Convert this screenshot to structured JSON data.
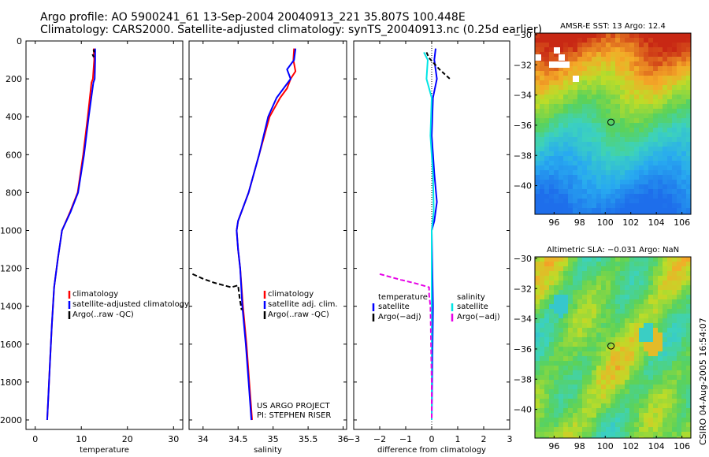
{
  "header": {
    "title_line1": "Argo profile: AO 5900241_61 13-Sep-2004 20040913_221 35.807S 100.448E",
    "title_line2": "Climatology: CARS2000. Satellite-adjusted climatology: synTS_20040913.nc (0.25d earlier)"
  },
  "side_stamp": "CSIRO 04-Aug-2005 16:54:07",
  "colors": {
    "climatology": "#ff0000",
    "satellite": "#0000ff",
    "argo": "#000000",
    "salinity_satellite": "#00e5e5",
    "salinity_argo": "#e600e6"
  },
  "chart_data": [
    {
      "type": "line",
      "xlabel": "temperature",
      "ylabel": "",
      "xlim": [
        -2,
        32
      ],
      "ylim": [
        2050,
        0
      ],
      "x_ticks": [
        0,
        10,
        20,
        30
      ],
      "y_ticks": [
        0,
        200,
        400,
        600,
        800,
        1000,
        1200,
        1400,
        1600,
        1800,
        2000
      ],
      "legend": {
        "position": "lower-right",
        "entries": [
          "climatology",
          "satellite-adjusted climatology",
          "Argo(..raw -QC)"
        ]
      },
      "annotations": [],
      "series": [
        {
          "name": "climatology",
          "color": "#ff0000",
          "points": [
            [
              12.7,
              40
            ],
            [
              12.8,
              100
            ],
            [
              12.5,
              200
            ],
            [
              12.2,
              220
            ],
            [
              11.4,
              400
            ],
            [
              10.4,
              600
            ],
            [
              9.2,
              800
            ],
            [
              7.6,
              900
            ],
            [
              5.8,
              1000
            ],
            [
              4.9,
              1150
            ],
            [
              4.1,
              1300
            ],
            [
              3.6,
              1500
            ],
            [
              3.2,
              1700
            ],
            [
              2.8,
              1900
            ],
            [
              2.6,
              2000
            ]
          ]
        },
        {
          "name": "satellite-adjusted climatology",
          "color": "#0000ff",
          "points": [
            [
              13.0,
              40
            ],
            [
              13.0,
              100
            ],
            [
              12.9,
              200
            ],
            [
              12.6,
              220
            ],
            [
              11.6,
              400
            ],
            [
              10.6,
              600
            ],
            [
              9.3,
              800
            ],
            [
              7.7,
              900
            ],
            [
              5.8,
              1000
            ],
            [
              4.9,
              1150
            ],
            [
              4.1,
              1300
            ],
            [
              3.6,
              1500
            ],
            [
              3.2,
              1700
            ],
            [
              2.8,
              1900
            ],
            [
              2.6,
              2000
            ]
          ]
        },
        {
          "name": "Argo(..raw -QC)",
          "color": "#000000",
          "dash": "4,3",
          "points": [
            [
              12.6,
              45
            ],
            [
              12.8,
              55
            ],
            [
              12.4,
              70
            ],
            [
              12.7,
              85
            ]
          ]
        }
      ]
    },
    {
      "type": "line",
      "xlabel": "salinity",
      "ylabel": "",
      "xlim": [
        33.8,
        36.05
      ],
      "ylim": [
        2050,
        0
      ],
      "x_ticks": [
        34,
        34.5,
        35,
        35.5,
        36
      ],
      "y_ticks": [
        0,
        200,
        400,
        600,
        800,
        1000,
        1200,
        1400,
        1600,
        1800,
        2000
      ],
      "legend": {
        "position": "lower-right",
        "entries": [
          "climatology",
          "satellite adj. clim.",
          "Argo(..raw -QC)"
        ]
      },
      "annotations": [
        "US ARGO PROJECT",
        "PI: STEPHEN RISER"
      ],
      "series": [
        {
          "name": "climatology",
          "color": "#ff0000",
          "points": [
            [
              35.3,
              40
            ],
            [
              35.29,
              100
            ],
            [
              35.32,
              160
            ],
            [
              35.25,
              200
            ],
            [
              35.2,
              250
            ],
            [
              35.1,
              300
            ],
            [
              34.95,
              400
            ],
            [
              34.8,
              600
            ],
            [
              34.65,
              800
            ],
            [
              34.5,
              950
            ],
            [
              34.48,
              1000
            ],
            [
              34.5,
              1100
            ],
            [
              34.53,
              1200
            ],
            [
              34.57,
              1400
            ],
            [
              34.62,
              1600
            ],
            [
              34.66,
              1800
            ],
            [
              34.7,
              2000
            ]
          ]
        },
        {
          "name": "satellite adj. clim.",
          "color": "#0000ff",
          "points": [
            [
              35.32,
              40
            ],
            [
              35.3,
              100
            ],
            [
              35.2,
              150
            ],
            [
              35.25,
              200
            ],
            [
              35.15,
              250
            ],
            [
              35.05,
              300
            ],
            [
              34.93,
              400
            ],
            [
              34.8,
              600
            ],
            [
              34.65,
              800
            ],
            [
              34.5,
              950
            ],
            [
              34.48,
              1000
            ],
            [
              34.5,
              1100
            ],
            [
              34.53,
              1200
            ],
            [
              34.56,
              1400
            ],
            [
              34.61,
              1600
            ],
            [
              34.65,
              1800
            ],
            [
              34.69,
              2000
            ]
          ]
        },
        {
          "name": "Argo(..raw -QC)",
          "color": "#000000",
          "dash": "6,3",
          "points": [
            [
              33.85,
              1230
            ],
            [
              34.0,
              1255
            ],
            [
              34.15,
              1275
            ],
            [
              34.3,
              1290
            ],
            [
              34.4,
              1300
            ],
            [
              34.5,
              1290
            ],
            [
              34.52,
              1350
            ],
            [
              34.55,
              1420
            ]
          ]
        }
      ]
    },
    {
      "type": "line",
      "xlabel": "difference from climatology",
      "ylabel": "",
      "xlim": [
        -3,
        3
      ],
      "ylim": [
        2050,
        0
      ],
      "x_ticks": [
        -3,
        -2,
        -1,
        0,
        1,
        2,
        3
      ],
      "y_ticks": [
        0,
        200,
        400,
        600,
        800,
        1000,
        1200,
        1400,
        1600,
        1800,
        2000
      ],
      "legend": {
        "position": "lower-middle",
        "entries_temperature_header": "temperature",
        "entries_salinity_header": "salinity",
        "entries": [
          "satellite",
          "Argo(−adj)",
          "satellite",
          "Argo(−adj)"
        ]
      },
      "annotations": [],
      "series": [
        {
          "name": "temperature satellite",
          "color": "#0000ff",
          "points": [
            [
              0.15,
              40
            ],
            [
              0.1,
              100
            ],
            [
              0.2,
              200
            ],
            [
              0.05,
              300
            ],
            [
              0.0,
              500
            ],
            [
              0.1,
              700
            ],
            [
              0.2,
              850
            ],
            [
              0.1,
              950
            ],
            [
              0.0,
              1000
            ],
            [
              0.05,
              1400
            ],
            [
              0.0,
              2000
            ]
          ]
        },
        {
          "name": "salinity satellite",
          "color": "#00e5e5",
          "points": [
            [
              -0.3,
              60
            ],
            [
              -0.15,
              100
            ],
            [
              -0.2,
              200
            ],
            [
              0.0,
              300
            ],
            [
              -0.05,
              500
            ],
            [
              0.05,
              700
            ],
            [
              0.08,
              900
            ],
            [
              0.0,
              1000
            ],
            [
              0.0,
              2000
            ]
          ]
        },
        {
          "name": "temperature Argo(−adj)",
          "color": "#000000",
          "dash": "5,3",
          "points": [
            [
              -0.2,
              60
            ],
            [
              -0.1,
              90
            ],
            [
              0.3,
              150
            ],
            [
              0.7,
              200
            ]
          ]
        },
        {
          "name": "salinity Argo(−adj)",
          "color": "#e600e6",
          "dash": "6,3",
          "points": [
            [
              -2.0,
              1230
            ],
            [
              -1.2,
              1260
            ],
            [
              -0.6,
              1280
            ],
            [
              -0.1,
              1300
            ],
            [
              -0.1,
              1340
            ],
            [
              -0.05,
              1400
            ],
            [
              0.0,
              1800
            ],
            [
              0.0,
              2000
            ]
          ]
        }
      ]
    },
    {
      "type": "heatmap",
      "title": "AMSR-E SST: 13 Argo: 12.4",
      "xlabel": "",
      "ylabel": "",
      "xlim": [
        94.5,
        106.7
      ],
      "ylim": [
        -41.9,
        -29.9
      ],
      "x_ticks": [
        96,
        98,
        100,
        102,
        104,
        106
      ],
      "y_ticks": [
        -30,
        -32,
        -34,
        -36,
        -38,
        -40
      ],
      "marker": [
        100.45,
        -35.8
      ]
    },
    {
      "type": "heatmap",
      "title": "Altimetric SLA: −0.031 Argo: NaN",
      "xlabel": "",
      "ylabel": "",
      "xlim": [
        94.5,
        106.7
      ],
      "ylim": [
        -41.9,
        -29.9
      ],
      "x_ticks": [
        96,
        98,
        100,
        102,
        104,
        106
      ],
      "y_ticks": [
        -30,
        -32,
        -34,
        -36,
        -38,
        -40
      ],
      "marker": [
        100.45,
        -35.8
      ]
    }
  ]
}
